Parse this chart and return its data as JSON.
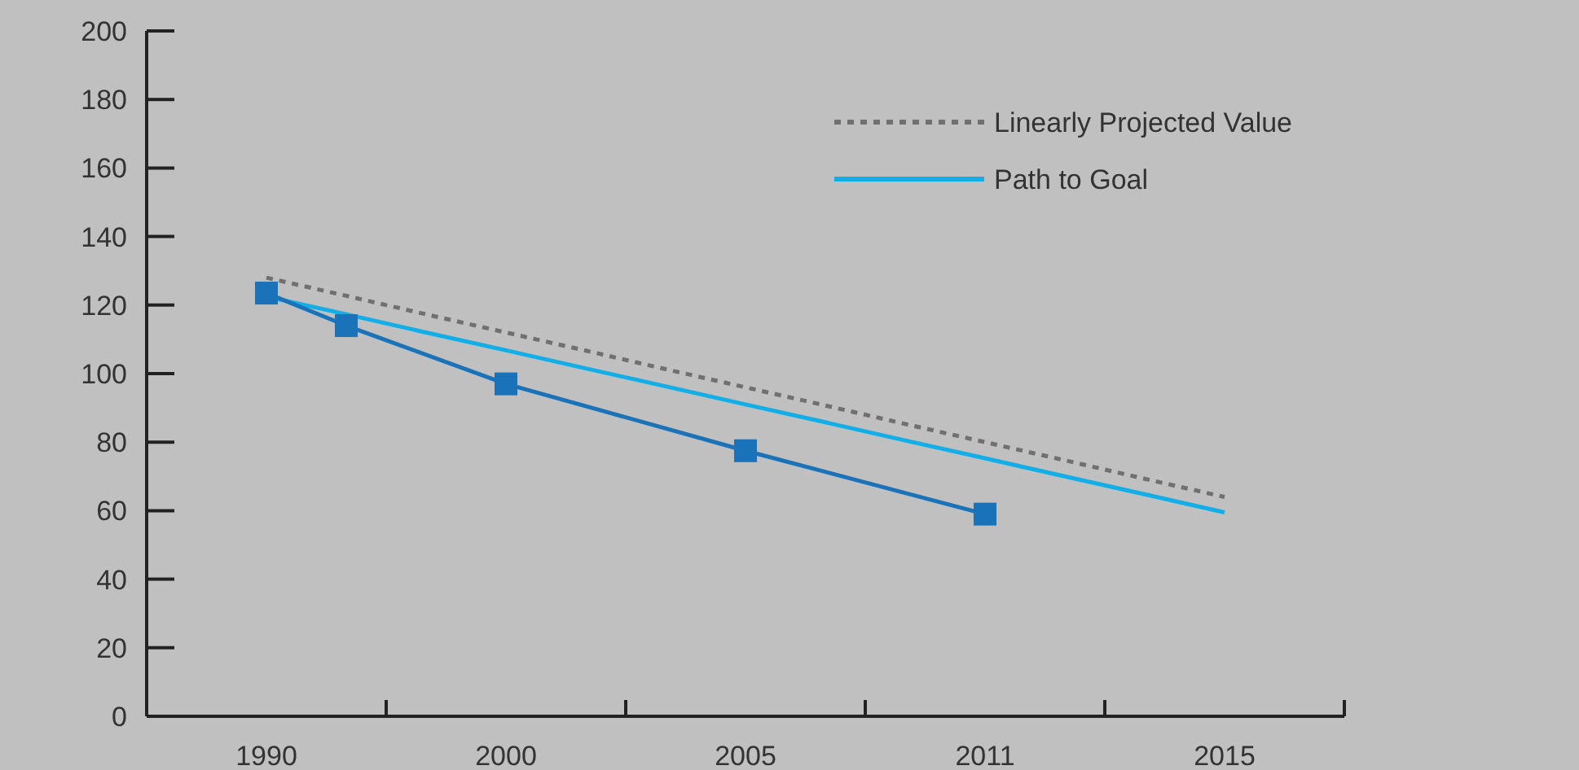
{
  "chart_data": {
    "type": "line",
    "categories": [
      null,
      "1990",
      null,
      null,
      "2000",
      null,
      null,
      "2005",
      null,
      null,
      "2011",
      null,
      null,
      "2015",
      null
    ],
    "series": [
      {
        "color": "#1a72b8",
        "marker": "square",
        "values": [
          null,
          123.5,
          114,
          null,
          97,
          null,
          null,
          77.5,
          null,
          null,
          59,
          null,
          null,
          null,
          null
        ]
      },
      {
        "name": "Linearly Projected Value",
        "color": "#707070",
        "line_style": "dotted",
        "marker": "none",
        "values": [
          null,
          128,
          122.7,
          117.3,
          112,
          106.7,
          101.3,
          96,
          90.7,
          85.3,
          80,
          74.7,
          69.3,
          64,
          null
        ]
      },
      {
        "name": "Path to Goal",
        "color": "#12aee8",
        "line_style": "solid",
        "marker": "none",
        "values": [
          null,
          122.5,
          117.3,
          112,
          106.8,
          101.5,
          96.3,
          91,
          85.8,
          80.5,
          75.3,
          70,
          64.8,
          59.5,
          null
        ]
      }
    ],
    "ylim": [
      0,
      200
    ],
    "yticks": [
      0,
      20,
      40,
      60,
      80,
      100,
      120,
      140,
      160,
      180,
      200
    ],
    "grid": false,
    "legend": "top right"
  }
}
